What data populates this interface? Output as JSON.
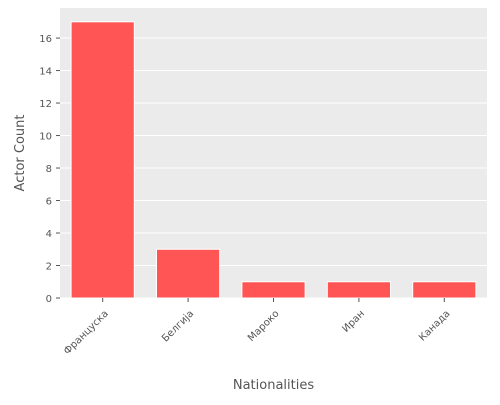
{
  "chart_data": {
    "type": "bar",
    "title": "",
    "xlabel": "Nationalities",
    "ylabel": "Actor Count",
    "categories": [
      "Француска",
      "Белгија",
      "Мароко",
      "Иран",
      "Канада"
    ],
    "values": [
      17,
      3,
      1,
      1,
      1
    ],
    "ylim": [
      0,
      17.85
    ],
    "yticks": [
      0,
      2,
      4,
      6,
      8,
      10,
      12,
      14,
      16
    ],
    "grid": true,
    "legend": "none",
    "colors": {
      "bar": "#ff5555",
      "plot_background": "#ebebeb",
      "grid": "#ffffff"
    }
  }
}
